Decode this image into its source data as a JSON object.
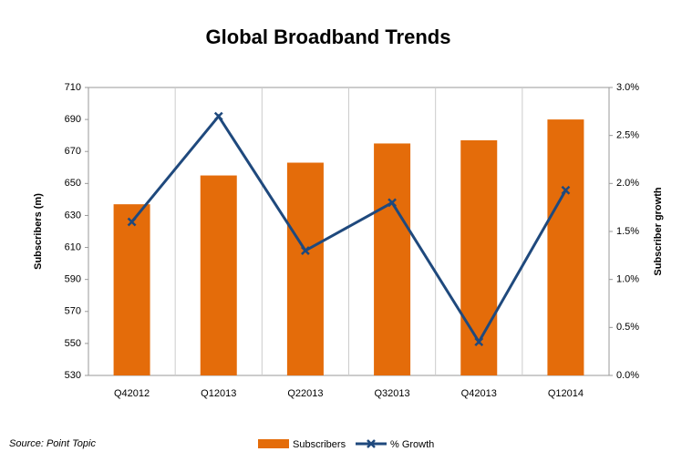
{
  "chart_data": {
    "type": "bar-line",
    "title": "Global Broadband Trends",
    "ylabel": "Subscribers (m)",
    "y2label": "Subscriber growth",
    "source": "Source: Point Topic",
    "categories": [
      "Q42012",
      "Q12013",
      "Q22013",
      "Q32013",
      "Q42013",
      "Q12014"
    ],
    "series": [
      {
        "name": "Subscribers",
        "type": "bar",
        "color": "#e46c0a",
        "values": [
          637,
          655,
          663,
          675,
          677,
          690
        ]
      },
      {
        "name": "% Growth",
        "type": "line",
        "axis": "y2",
        "color": "#1f497d",
        "values": [
          1.6,
          2.7,
          1.3,
          1.8,
          0.35,
          1.93
        ]
      }
    ],
    "ylim": [
      530,
      710
    ],
    "yticks": [
      530,
      550,
      570,
      590,
      610,
      630,
      650,
      670,
      690,
      710
    ],
    "y2lim": [
      0,
      3
    ],
    "y2ticks": [
      {
        "value": 0,
        "label": "0.0%"
      },
      {
        "value": 0.5,
        "label": "0.5%"
      },
      {
        "value": 1,
        "label": "1.0%"
      },
      {
        "value": 1.5,
        "label": "1.5%"
      },
      {
        "value": 2,
        "label": "2.0%"
      },
      {
        "value": 2.5,
        "label": "2.5%"
      },
      {
        "value": 3,
        "label": "3.0%"
      }
    ]
  }
}
